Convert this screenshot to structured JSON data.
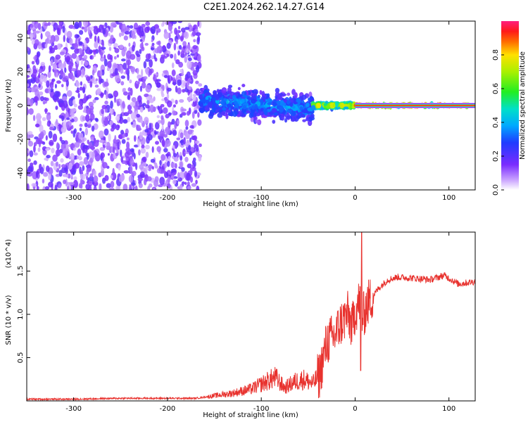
{
  "title": "C2E1.2024.262.14.27.G14",
  "colors": {
    "spectrogram_low": "#8a3cff",
    "snr_line": "#e8322e",
    "ridge": "#ff0000"
  },
  "chart_data": [
    {
      "type": "heatmap",
      "name": "spectrogram",
      "xlabel": "Height of straight line (km)",
      "ylabel": "Frequency (Hz)",
      "xlim": [
        -350,
        128
      ],
      "ylim": [
        -50,
        50
      ],
      "xticks": [
        -300,
        -200,
        -100,
        0,
        100
      ],
      "yticks": [
        -40,
        -20,
        0,
        20,
        40
      ],
      "colorbar": {
        "label": "Normalized spectral amplitude",
        "range": [
          0,
          1
        ],
        "ticks": [
          "0.0",
          "0.2",
          "0.4",
          "0.6",
          "0.8"
        ]
      },
      "regions": [
        {
          "x": [
            -350,
            -165
          ],
          "description_level": "noise",
          "amplitude": 0.1
        },
        {
          "x": [
            -165,
            -45
          ],
          "freq_center": 3,
          "freq_spread": 12,
          "amplitude": 0.35
        },
        {
          "x": [
            -45,
            0
          ],
          "freq_center": 0,
          "freq_spread": 2,
          "amplitude": 0.75
        },
        {
          "x": [
            0,
            128
          ],
          "freq_center": 0,
          "freq_spread": 1,
          "amplitude": 1.0
        }
      ]
    },
    {
      "type": "line",
      "name": "snr",
      "xlabel": "Height of straight line (km)",
      "ylabel": "SNR (10 * v/v)",
      "y_multiplier": "(x10^4)",
      "xlim": [
        -350,
        128
      ],
      "ylim": [
        0,
        1.95
      ],
      "xticks": [
        -300,
        -200,
        -100,
        0,
        100
      ],
      "yticks": [
        "0.5",
        "1.0",
        "1.5"
      ],
      "series": [
        {
          "x": [
            -350,
            -300,
            -250,
            -200,
            -170,
            -150,
            -130,
            -110,
            -95,
            -85,
            -75,
            -65,
            -55,
            -45,
            -38,
            -30,
            -22,
            -15,
            -8,
            -3,
            0,
            5,
            8,
            12,
            18,
            25,
            35,
            45,
            60,
            80,
            95,
            110,
            128
          ],
          "y": [
            0.02,
            0.02,
            0.03,
            0.03,
            0.03,
            0.06,
            0.09,
            0.14,
            0.22,
            0.27,
            0.15,
            0.22,
            0.25,
            0.2,
            0.3,
            0.68,
            0.75,
            0.9,
            1.0,
            0.85,
            1.05,
            1.15,
            0.95,
            1.1,
            1.2,
            1.3,
            1.4,
            1.43,
            1.42,
            1.4,
            1.45,
            1.35,
            1.38
          ]
        }
      ]
    }
  ]
}
